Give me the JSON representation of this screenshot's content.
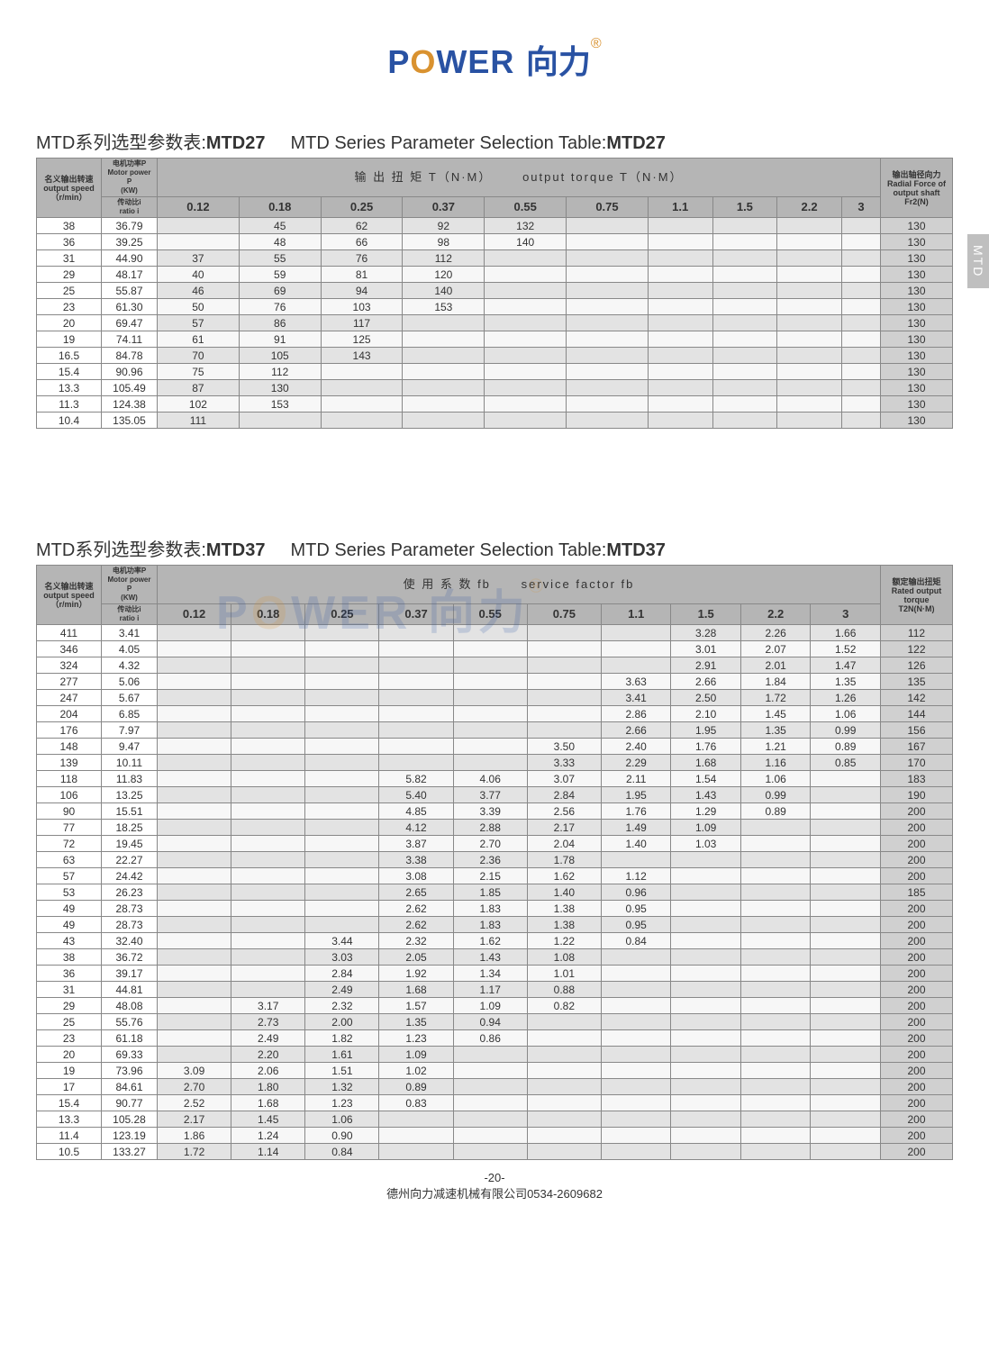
{
  "logo": {
    "power": "P",
    "o": "O",
    "wer": "WER",
    "cn": "向力",
    "reg": "®"
  },
  "side_tab": "MTD",
  "table1": {
    "title_cn": "MTD系列选型参数表:",
    "title_model": "MTD27",
    "title_en": "MTD Series Parameter Selection Table:",
    "banner_cn": "输 出 扭 矩 T（N·M）",
    "banner_en": "output torque T（N·M）",
    "hdr_left1": "名义输出转速\noutput speed\n（r/min）",
    "hdr_left2": "电机功率P\nMotor power P\n(KW)",
    "hdr_left2b": "传动比i\nratio i",
    "hdr_right": "输出轴径向力\nRadial Force of\noutput shaft\nFr2(N)",
    "power_cols": [
      "0.12",
      "0.18",
      "0.25",
      "0.37",
      "0.55",
      "0.75",
      "1.1",
      "1.5",
      "2.2",
      "3"
    ],
    "rows": [
      [
        "38",
        "36.79",
        "",
        "45",
        "62",
        "92",
        "132",
        "",
        "",
        "",
        "",
        "",
        "130"
      ],
      [
        "36",
        "39.25",
        "",
        "48",
        "66",
        "98",
        "140",
        "",
        "",
        "",
        "",
        "",
        "130"
      ],
      [
        "31",
        "44.90",
        "37",
        "55",
        "76",
        "112",
        "",
        "",
        "",
        "",
        "",
        "",
        "130"
      ],
      [
        "29",
        "48.17",
        "40",
        "59",
        "81",
        "120",
        "",
        "",
        "",
        "",
        "",
        "",
        "130"
      ],
      [
        "25",
        "55.87",
        "46",
        "69",
        "94",
        "140",
        "",
        "",
        "",
        "",
        "",
        "",
        "130"
      ],
      [
        "23",
        "61.30",
        "50",
        "76",
        "103",
        "153",
        "",
        "",
        "",
        "",
        "",
        "",
        "130"
      ],
      [
        "20",
        "69.47",
        "57",
        "86",
        "117",
        "",
        "",
        "",
        "",
        "",
        "",
        "",
        "130"
      ],
      [
        "19",
        "74.11",
        "61",
        "91",
        "125",
        "",
        "",
        "",
        "",
        "",
        "",
        "",
        "130"
      ],
      [
        "16.5",
        "84.78",
        "70",
        "105",
        "143",
        "",
        "",
        "",
        "",
        "",
        "",
        "",
        "130"
      ],
      [
        "15.4",
        "90.96",
        "75",
        "112",
        "",
        "",
        "",
        "",
        "",
        "",
        "",
        "",
        "130"
      ],
      [
        "13.3",
        "105.49",
        "87",
        "130",
        "",
        "",
        "",
        "",
        "",
        "",
        "",
        "",
        "130"
      ],
      [
        "11.3",
        "124.38",
        "102",
        "153",
        "",
        "",
        "",
        "",
        "",
        "",
        "",
        "",
        "130"
      ],
      [
        "10.4",
        "135.05",
        "111",
        "",
        "",
        "",
        "",
        "",
        "",
        "",
        "",
        "",
        "130"
      ]
    ]
  },
  "table2": {
    "title_cn": "MTD系列选型参数表:",
    "title_model": "MTD37",
    "title_en": "MTD Series Parameter Selection Table:",
    "banner_cn": "使 用 系 数 fb",
    "banner_en": "service  factor  fb",
    "hdr_left1": "名义输出转速\noutput speed\n（r/min）",
    "hdr_left2": "电机功率P\nMotor power P\n(KW)",
    "hdr_left2b": "传动比i\nratio i",
    "hdr_right": "额定输出扭矩\nRated output\ntorque\nT2N(N·M)",
    "power_cols": [
      "0.12",
      "0.18",
      "0.25",
      "0.37",
      "0.55",
      "0.75",
      "1.1",
      "1.5",
      "2.2",
      "3"
    ],
    "rows": [
      [
        "411",
        "3.41",
        "",
        "",
        "",
        "",
        "",
        "",
        "",
        "",
        "3.28",
        "2.26",
        "1.66",
        "112"
      ],
      [
        "346",
        "4.05",
        "",
        "",
        "",
        "",
        "",
        "",
        "",
        "",
        "3.01",
        "2.07",
        "1.52",
        "122"
      ],
      [
        "324",
        "4.32",
        "",
        "",
        "",
        "",
        "",
        "",
        "",
        "",
        "2.91",
        "2.01",
        "1.47",
        "126"
      ],
      [
        "277",
        "5.06",
        "",
        "",
        "",
        "",
        "",
        "",
        "",
        "3.63",
        "2.66",
        "1.84",
        "1.35",
        "135"
      ],
      [
        "247",
        "5.67",
        "",
        "",
        "",
        "",
        "",
        "",
        "",
        "3.41",
        "2.50",
        "1.72",
        "1.26",
        "142"
      ],
      [
        "204",
        "6.85",
        "",
        "",
        "",
        "",
        "",
        "",
        "",
        "2.86",
        "2.10",
        "1.45",
        "1.06",
        "144"
      ],
      [
        "176",
        "7.97",
        "",
        "",
        "",
        "",
        "",
        "",
        "",
        "2.66",
        "1.95",
        "1.35",
        "0.99",
        "156"
      ],
      [
        "148",
        "9.47",
        "",
        "",
        "",
        "",
        "",
        "",
        "3.50",
        "2.40",
        "1.76",
        "1.21",
        "0.89",
        "167"
      ],
      [
        "139",
        "10.11",
        "",
        "",
        "",
        "",
        "",
        "",
        "3.33",
        "2.29",
        "1.68",
        "1.16",
        "0.85",
        "170"
      ],
      [
        "118",
        "11.83",
        "",
        "",
        "",
        "",
        "5.82",
        "4.06",
        "3.07",
        "2.11",
        "1.54",
        "1.06",
        "",
        "183"
      ],
      [
        "106",
        "13.25",
        "",
        "",
        "",
        "",
        "5.40",
        "3.77",
        "2.84",
        "1.95",
        "1.43",
        "0.99",
        "",
        "190"
      ],
      [
        "90",
        "15.51",
        "",
        "",
        "",
        "",
        "4.85",
        "3.39",
        "2.56",
        "1.76",
        "1.29",
        "0.89",
        "",
        "200"
      ],
      [
        "77",
        "18.25",
        "",
        "",
        "",
        "",
        "4.12",
        "2.88",
        "2.17",
        "1.49",
        "1.09",
        "",
        "",
        "200"
      ],
      [
        "72",
        "19.45",
        "",
        "",
        "",
        "",
        "3.87",
        "2.70",
        "2.04",
        "1.40",
        "1.03",
        "",
        "",
        "200"
      ],
      [
        "63",
        "22.27",
        "",
        "",
        "",
        "",
        "3.38",
        "2.36",
        "1.78",
        "",
        "",
        "",
        "",
        "200"
      ],
      [
        "57",
        "24.42",
        "",
        "",
        "",
        "",
        "3.08",
        "2.15",
        "1.62",
        "1.12",
        "",
        "",
        "",
        "200"
      ],
      [
        "53",
        "26.23",
        "",
        "",
        "",
        "",
        "2.65",
        "1.85",
        "1.40",
        "0.96",
        "",
        "",
        "",
        "185"
      ],
      [
        "49",
        "28.73",
        "",
        "",
        "",
        "",
        "2.62",
        "1.83",
        "1.38",
        "0.95",
        "",
        "",
        "",
        "200"
      ],
      [
        "49",
        "28.73",
        "",
        "",
        "",
        "",
        "2.62",
        "1.83",
        "1.38",
        "0.95",
        "",
        "",
        "",
        "200"
      ],
      [
        "43",
        "32.40",
        "",
        "",
        "",
        "3.44",
        "2.32",
        "1.62",
        "1.22",
        "0.84",
        "",
        "",
        "",
        "200"
      ],
      [
        "38",
        "36.72",
        "",
        "",
        "",
        "3.03",
        "2.05",
        "1.43",
        "1.08",
        "",
        "",
        "",
        "",
        "200"
      ],
      [
        "36",
        "39.17",
        "",
        "",
        "",
        "2.84",
        "1.92",
        "1.34",
        "1.01",
        "",
        "",
        "",
        "",
        "200"
      ],
      [
        "31",
        "44.81",
        "",
        "",
        "",
        "2.49",
        "1.68",
        "1.17",
        "0.88",
        "",
        "",
        "",
        "",
        "200"
      ],
      [
        "29",
        "48.08",
        "",
        "",
        "3.17",
        "2.32",
        "1.57",
        "1.09",
        "0.82",
        "",
        "",
        "",
        "",
        "200"
      ],
      [
        "25",
        "55.76",
        "",
        "",
        "2.73",
        "2.00",
        "1.35",
        "0.94",
        "",
        "",
        "",
        "",
        "",
        "200"
      ],
      [
        "23",
        "61.18",
        "",
        "",
        "2.49",
        "1.82",
        "1.23",
        "0.86",
        "",
        "",
        "",
        "",
        "",
        "200"
      ],
      [
        "20",
        "69.33",
        "",
        "",
        "2.20",
        "1.61",
        "1.09",
        "",
        "",
        "",
        "",
        "",
        "",
        "200"
      ],
      [
        "19",
        "73.96",
        "",
        "3.09",
        "2.06",
        "1.51",
        "1.02",
        "",
        "",
        "",
        "",
        "",
        "",
        "200"
      ],
      [
        "17",
        "84.61",
        "",
        "2.70",
        "1.80",
        "1.32",
        "0.89",
        "",
        "",
        "",
        "",
        "",
        "",
        "200"
      ],
      [
        "15.4",
        "90.77",
        "",
        "2.52",
        "1.68",
        "1.23",
        "0.83",
        "",
        "",
        "",
        "",
        "",
        "",
        "200"
      ],
      [
        "13.3",
        "105.28",
        "",
        "2.17",
        "1.45",
        "1.06",
        "",
        "",
        "",
        "",
        "",
        "",
        "",
        "200"
      ],
      [
        "11.4",
        "123.19",
        "",
        "1.86",
        "1.24",
        "0.90",
        "",
        "",
        "",
        "",
        "",
        "",
        "",
        "200"
      ],
      [
        "10.5",
        "133.27",
        "",
        "1.72",
        "1.14",
        "0.84",
        "",
        "",
        "",
        "",
        "",
        "",
        "",
        "200"
      ]
    ]
  },
  "footer": {
    "page": "-20-",
    "company": "德州向力减速机械有限公司0534-2609682"
  }
}
